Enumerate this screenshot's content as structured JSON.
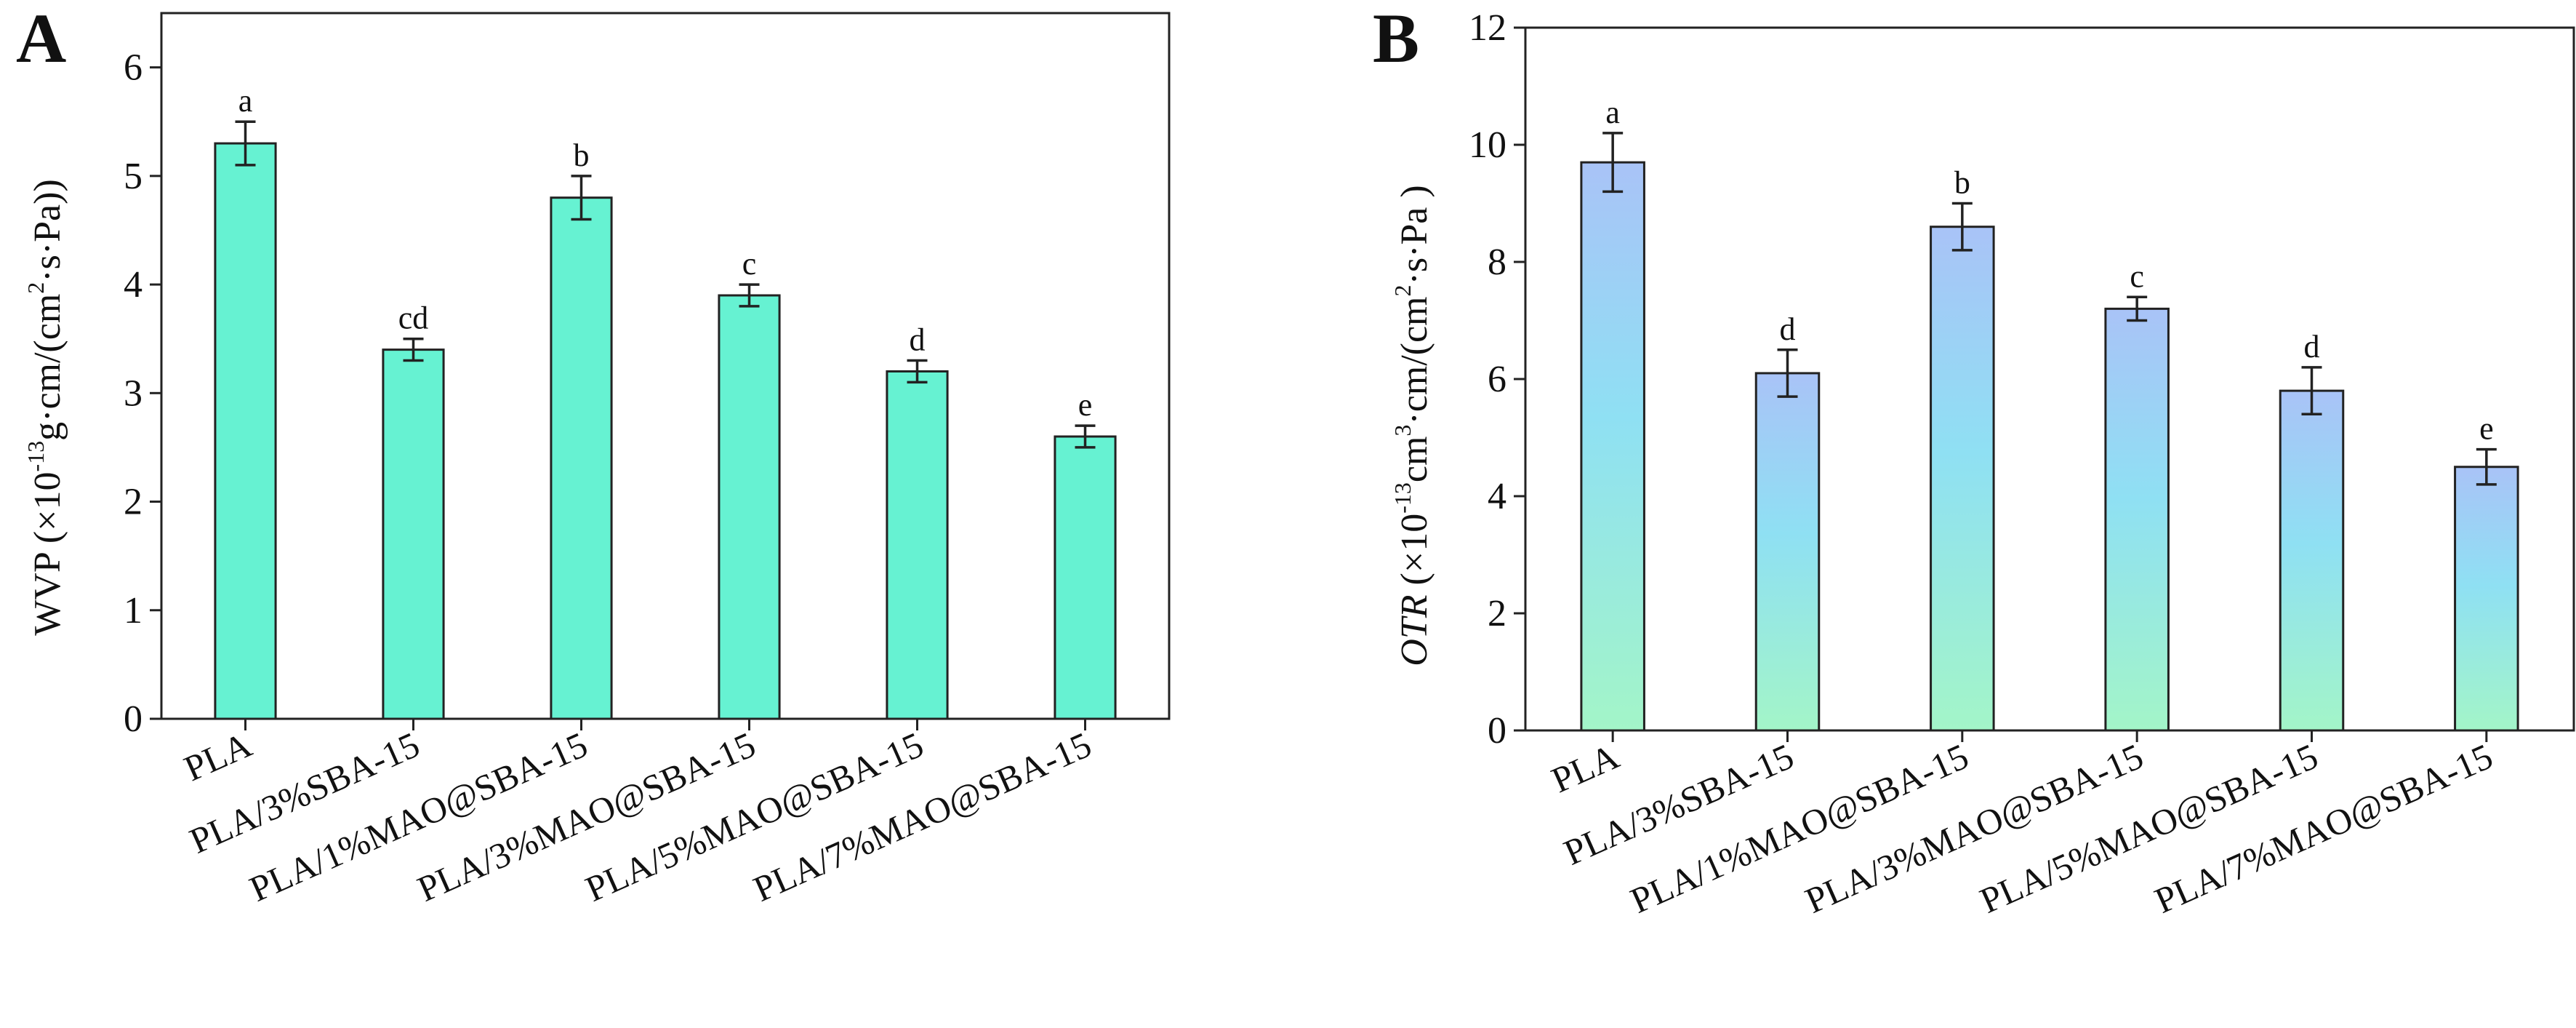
{
  "chart_data": [
    {
      "type": "bar",
      "panel_label": "A",
      "categories": [
        "PLA",
        "PLA/3%SBA-15",
        "PLA/1%MAO@SBA-15",
        "PLA/3%MAO@SBA-15",
        "PLA/5%MAO@SBA-15",
        "PLA/7%MAO@SBA-15"
      ],
      "values": [
        5.3,
        3.4,
        4.8,
        3.9,
        3.2,
        2.6
      ],
      "errors": [
        0.2,
        0.1,
        0.2,
        0.1,
        0.1,
        0.1
      ],
      "significance": [
        "a",
        "cd",
        "b",
        "c",
        "d",
        "e"
      ],
      "ylabel": {
        "prefix": "WVP (×10",
        "exp": "-13",
        "mid": "g·cm/(cm",
        "exp2": "2",
        "suffix": "·s·Pa))"
      },
      "ylim": [
        0,
        6.5
      ],
      "yticks": [
        0,
        1,
        2,
        3,
        4,
        5,
        6
      ],
      "colors": {
        "bar": "#66f2d2",
        "edge": "#222222"
      }
    },
    {
      "type": "bar",
      "panel_label": "B",
      "categories": [
        "PLA",
        "PLA/3%SBA-15",
        "PLA/1%MAO@SBA-15",
        "PLA/3%MAO@SBA-15",
        "PLA/5%MAO@SBA-15",
        "PLA/7%MAO@SBA-15"
      ],
      "values": [
        9.7,
        6.1,
        8.6,
        7.2,
        5.8,
        4.5
      ],
      "errors": [
        0.5,
        0.4,
        0.4,
        0.2,
        0.4,
        0.3
      ],
      "significance": [
        "a",
        "d",
        "b",
        "c",
        "d",
        "e"
      ],
      "ylabel": {
        "prefix_italic": "OTR",
        "prefix": " (×10",
        "exp": "-13",
        "mid": "cm",
        "exp2": "3",
        "mid2": "·cm/(cm",
        "exp3": "2",
        "suffix": "·s·Pa )"
      },
      "ylim": [
        0,
        12
      ],
      "yticks": [
        0,
        2,
        4,
        6,
        8,
        10,
        12
      ],
      "colors": {
        "bar_top": "#a9c3f7",
        "bar_mid": "#8fe6f2",
        "bar_bottom": "#a3f5c8",
        "edge": "#222222"
      }
    }
  ]
}
